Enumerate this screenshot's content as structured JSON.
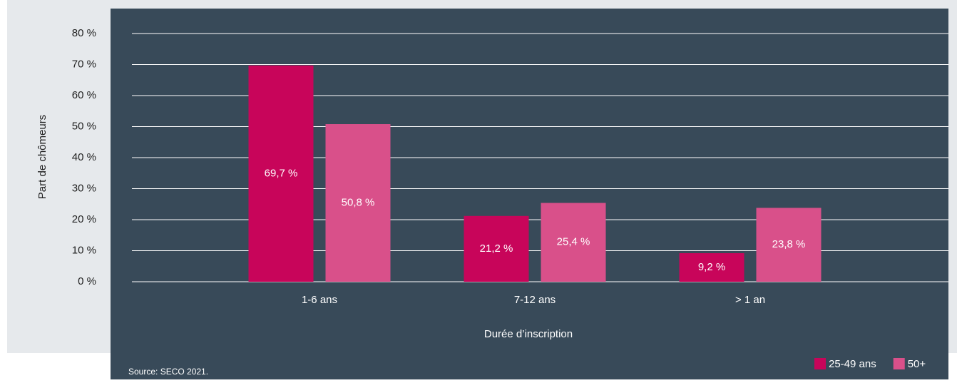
{
  "chart_data": {
    "type": "bar",
    "x_label": "Durée d’inscription",
    "y_label": "Part de chômeurs",
    "source": "Source: SECO 2021.",
    "categories": [
      "1-6 ans",
      "7-12 ans",
      "> 1 an"
    ],
    "series": [
      {
        "name": "25-49 ans",
        "color": "#c8055a",
        "values": [
          69.7,
          21.2,
          9.2
        ],
        "value_labels": [
          "69,7 %",
          "21,2 %",
          "9,2 %"
        ]
      },
      {
        "name": "50+",
        "color": "#d9508a",
        "values": [
          50.8,
          25.4,
          23.8
        ],
        "value_labels": [
          "50,8 %",
          "25,4 %",
          "23,8 %"
        ]
      }
    ],
    "ylim": [
      0,
      80
    ],
    "yticks": [
      {
        "value": 0,
        "label": "0 %"
      },
      {
        "value": 10,
        "label": "10 %"
      },
      {
        "value": 20,
        "label": "20 %"
      },
      {
        "value": 30,
        "label": "30 %"
      },
      {
        "value": 40,
        "label": "40 %"
      },
      {
        "value": 50,
        "label": "50 %"
      },
      {
        "value": 60,
        "label": "60 %"
      },
      {
        "value": 70,
        "label": "70 %"
      },
      {
        "value": 80,
        "label": "80 %"
      }
    ],
    "grid": true,
    "legend": "bottom-right"
  }
}
